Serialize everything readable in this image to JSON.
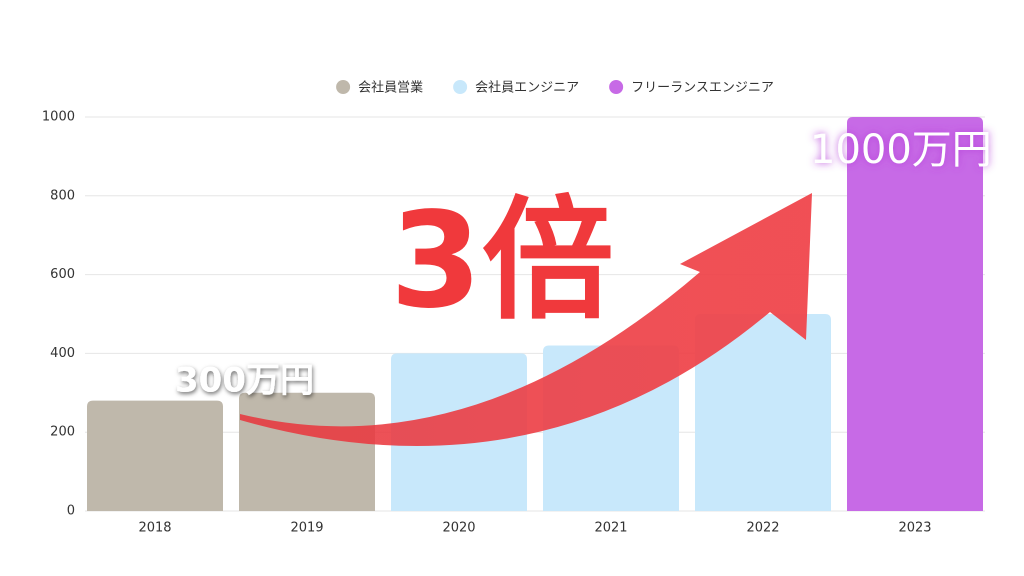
{
  "chart_data": {
    "type": "bar",
    "categories": [
      "2018",
      "2019",
      "2020",
      "2021",
      "2022",
      "2023"
    ],
    "series": [
      {
        "name": "会社員営業",
        "color": "#bfb8ab",
        "values": [
          280,
          300,
          null,
          null,
          null,
          null
        ]
      },
      {
        "name": "会社員エンジニア",
        "color": "#c8e8fb",
        "values": [
          null,
          null,
          400,
          420,
          500,
          null
        ]
      },
      {
        "name": "フリーランスエンジニア",
        "color": "#c76ae6",
        "values": [
          null,
          null,
          null,
          null,
          null,
          1000
        ]
      }
    ],
    "ylim": [
      0,
      1000
    ],
    "yticks": [
      0,
      200,
      400,
      600,
      800,
      1000
    ],
    "grid": true,
    "legend": "top",
    "annotations": [
      {
        "text": "300万円"
      },
      {
        "text": "1000万円"
      },
      {
        "text": "3倍"
      }
    ]
  }
}
